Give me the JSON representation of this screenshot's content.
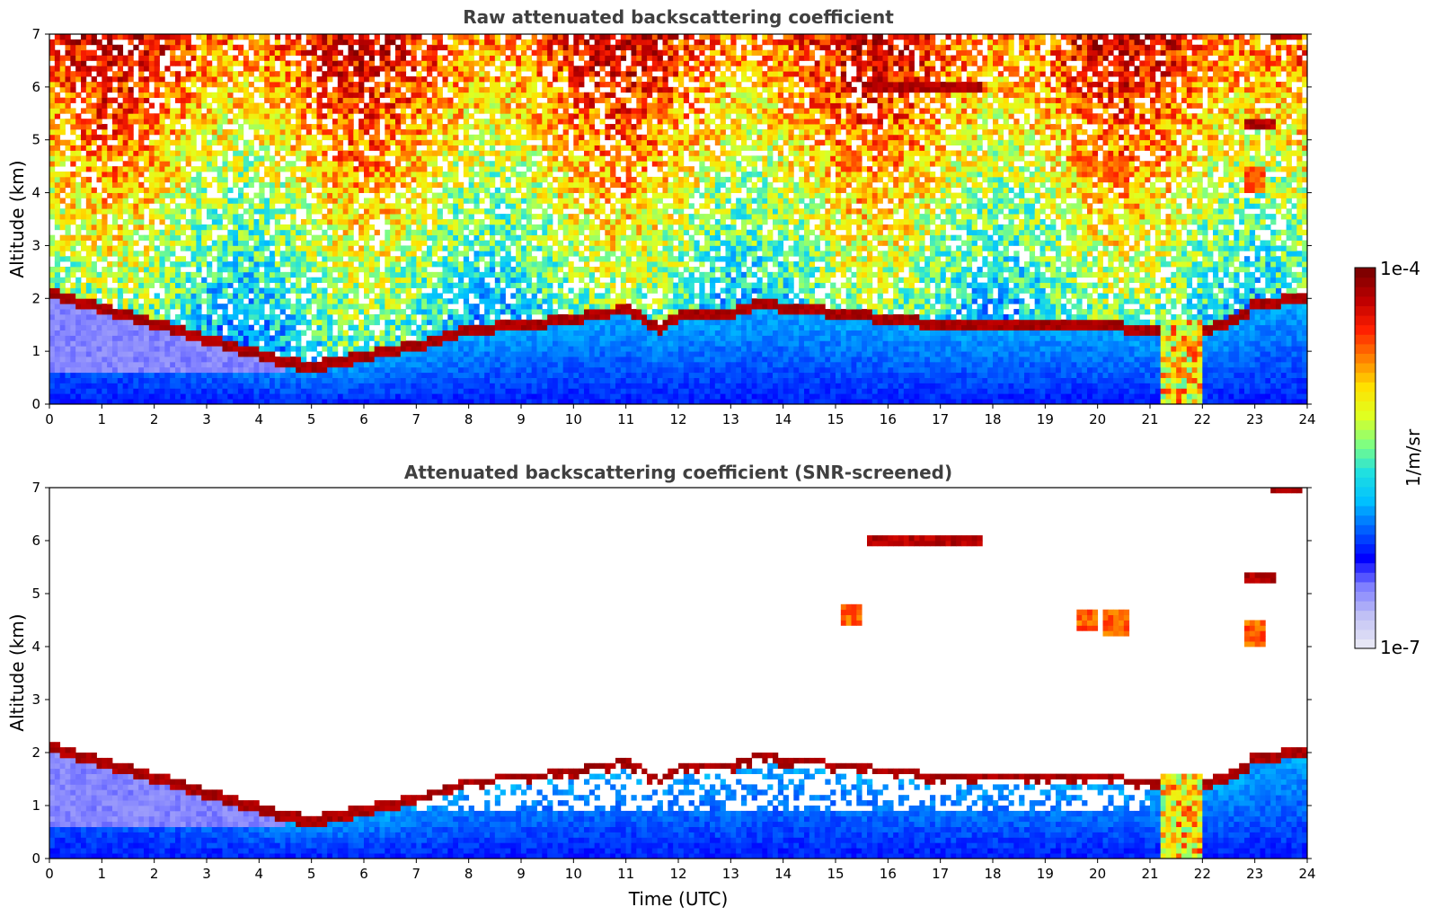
{
  "chart_data": [
    {
      "type": "heatmap",
      "title": "Raw attenuated backscattering coefficient",
      "ylabel": "Altitude (km)",
      "xlabel": "",
      "xlim": [
        0,
        24
      ],
      "ylim": [
        0,
        7
      ],
      "x_ticks": [
        "0",
        "1",
        "2",
        "3",
        "4",
        "5",
        "6",
        "7",
        "8",
        "9",
        "10",
        "11",
        "12",
        "13",
        "14",
        "15",
        "16",
        "17",
        "18",
        "19",
        "20",
        "21",
        "22",
        "23",
        "24"
      ],
      "y_ticks": [
        "0",
        "1",
        "2",
        "3",
        "4",
        "5",
        "6",
        "7"
      ],
      "screened": false,
      "cloud_layer": {
        "time": [
          0.0,
          4.5,
          5.0,
          6.0,
          7.0,
          8.0,
          9.0,
          10.0,
          11.0,
          11.7,
          12.0,
          13.0,
          13.5,
          17.0,
          18.5,
          20.0,
          21.0,
          22.0,
          22.7,
          23.0,
          24.0
        ],
        "altitude": [
          2.1,
          0.8,
          0.7,
          0.9,
          1.1,
          1.4,
          1.5,
          1.6,
          1.8,
          1.4,
          1.7,
          1.7,
          1.9,
          1.5,
          1.5,
          1.5,
          1.4,
          1.4,
          1.6,
          1.9,
          2.0
        ]
      },
      "upper_layers": [
        {
          "t_start": 15.6,
          "t_end": 17.8,
          "altitude": 6.0
        },
        {
          "t_start": 22.8,
          "t_end": 23.4,
          "altitude": 5.3
        },
        {
          "t_start": 23.3,
          "t_end": 23.9,
          "altitude": 6.95
        }
      ],
      "blobs": [
        {
          "time": 15.3,
          "altitude": 4.6
        },
        {
          "time": 19.8,
          "altitude": 4.5
        },
        {
          "time": 20.3,
          "altitude": 4.4
        },
        {
          "time": 23.0,
          "altitude": 4.3
        }
      ],
      "convective_plume": {
        "t_start": 21.2,
        "t_end": 22.0,
        "altitude_top": 1.6
      }
    },
    {
      "type": "heatmap",
      "title": "Attenuated backscattering coefficient (SNR-screened)",
      "ylabel": "Altitude (km)",
      "xlabel": "Time (UTC)",
      "xlim": [
        0,
        24
      ],
      "ylim": [
        0,
        7
      ],
      "x_ticks": [
        "0",
        "1",
        "2",
        "3",
        "4",
        "5",
        "6",
        "7",
        "8",
        "9",
        "10",
        "11",
        "12",
        "13",
        "14",
        "15",
        "16",
        "17",
        "18",
        "19",
        "20",
        "21",
        "22",
        "23",
        "24"
      ],
      "y_ticks": [
        "0",
        "1",
        "2",
        "3",
        "4",
        "5",
        "6",
        "7"
      ],
      "screened": true
    }
  ],
  "colorbar": {
    "label": "1/m/sr",
    "max_label": "1e-4",
    "min_label": "1e-7",
    "scale": "log",
    "range": [
      1e-07,
      0.0001
    ],
    "colormap": "jet",
    "colors": [
      "#e6e6f5",
      "#c0c0f5",
      "#8080ff",
      "#0000ff",
      "#0060ff",
      "#00c0ff",
      "#20e0e0",
      "#80ff80",
      "#e0ff20",
      "#ffe000",
      "#ff8000",
      "#ff2000",
      "#c00000",
      "#800000"
    ]
  }
}
